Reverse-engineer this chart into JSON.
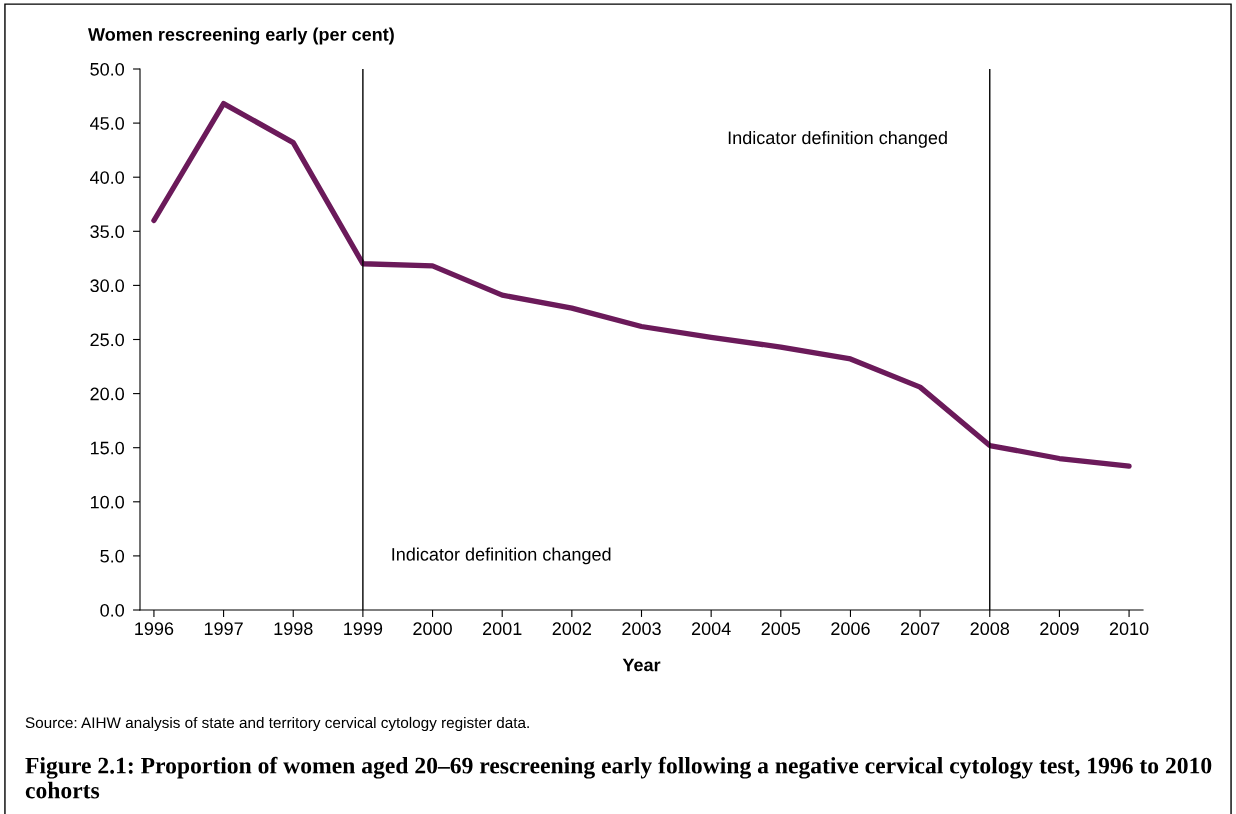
{
  "chart_data": {
    "type": "line",
    "title": "Figure 2.1: Proportion of women aged 20–69 rescreening early following a negative cervical cytology test, 1996 to 2010 cohorts",
    "ylabel": "Women rescreening early (per cent)",
    "xlabel": "Year",
    "x": [
      1996,
      1997,
      1998,
      1999,
      2000,
      2001,
      2002,
      2003,
      2004,
      2005,
      2006,
      2007,
      2008,
      2009,
      2010
    ],
    "series": [
      {
        "color": "#6b1a5a",
        "values": [
          36.0,
          46.8,
          43.2,
          32.0,
          31.8,
          29.1,
          27.9,
          26.2,
          25.2,
          24.3,
          23.2,
          20.6,
          15.2,
          14.0,
          13.3
        ]
      }
    ],
    "xlim": [
      1995.8,
      2010.2
    ],
    "xticks": [
      1996,
      1997,
      1998,
      1999,
      2000,
      2001,
      2002,
      2003,
      2004,
      2005,
      2006,
      2007,
      2008,
      2009,
      2010
    ],
    "ylim": [
      0,
      50
    ],
    "yticks": [
      {
        "value": 0,
        "label": "0.0"
      },
      {
        "value": 5,
        "label": "5.0"
      },
      {
        "value": 10,
        "label": "10.0"
      },
      {
        "value": 15,
        "label": "15.0"
      },
      {
        "value": 20,
        "label": "20.0"
      },
      {
        "value": 25,
        "label": "25.0"
      },
      {
        "value": 30,
        "label": "30.0"
      },
      {
        "value": 35,
        "label": "35.0"
      },
      {
        "value": 40,
        "label": "40.0"
      },
      {
        "value": 45,
        "label": "45.0"
      },
      {
        "value": 50,
        "label": "50.0"
      }
    ],
    "ref_lines": [
      {
        "axis": "x",
        "value": 1999,
        "color": "#000000",
        "label": "Indicator definition changed"
      },
      {
        "axis": "x",
        "value": 2008,
        "color": "#000000",
        "label": "Indicator definition changed"
      }
    ],
    "annotations": [
      "Source: AIHW analysis of state and territory cervical cytology register data."
    ],
    "grid": false,
    "legend": false,
    "marker": "none",
    "line_style": "solid"
  }
}
